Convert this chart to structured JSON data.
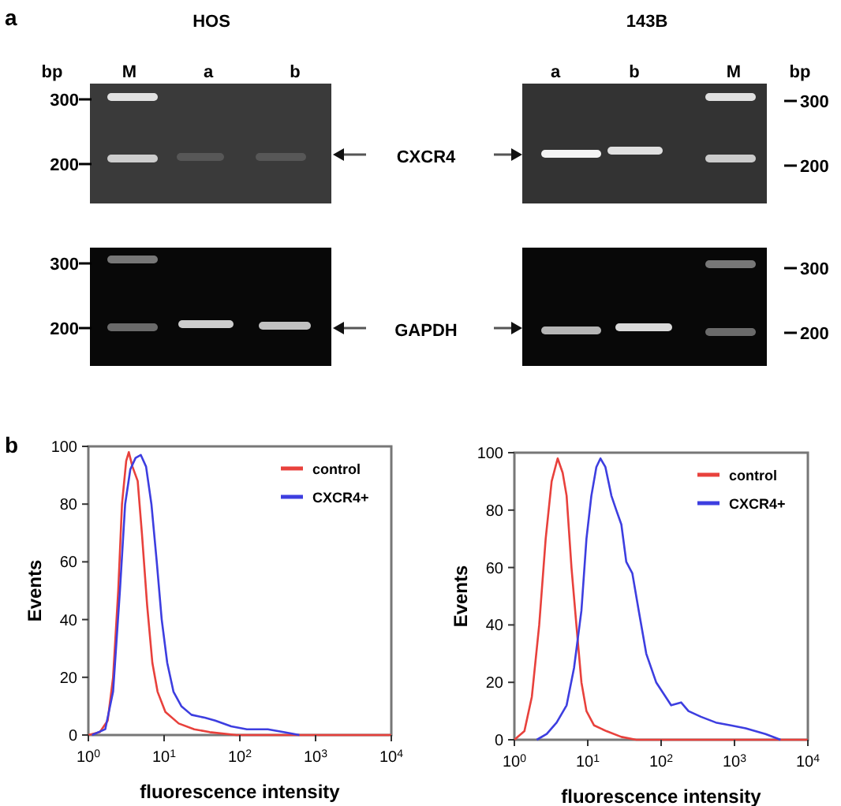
{
  "chart_data": [
    {
      "type": "other",
      "annotations": [
        "a",
        "HOS",
        "143B",
        "bp",
        "M",
        "a",
        "b",
        "a",
        "b",
        "M",
        "bp",
        "300",
        "200",
        "300",
        "200",
        "300",
        "200",
        "300",
        "200",
        "CXCR4",
        "GAPDH",
        "b"
      ]
    },
    {
      "type": "line",
      "xlabel": "fluorescence intensity",
      "ylabel": "Events",
      "log": "x",
      "legend": "top right",
      "xlim": [
        1,
        10000
      ],
      "xticks": [
        {
          "value": 1,
          "label": "10$^{0}$"
        },
        {
          "value": 10,
          "label": "10$^{1}$"
        },
        {
          "value": 100,
          "label": "10$^{2}$"
        },
        {
          "value": 1000,
          "label": "10$^{3}$"
        },
        {
          "value": 10000,
          "label": "10$^{4}$"
        }
      ],
      "ylim": [
        0,
        100
      ],
      "yticks": [
        0,
        20,
        40,
        60,
        80,
        100
      ],
      "series": [
        {
          "name": "control",
          "color": "#e8413c",
          "x": [
            1,
            1.42,
            1.8,
            2.12,
            2.48,
            2.78,
            3.16,
            3.42,
            3.82,
            4.48,
            5.09,
            5.97,
            7.0,
            8.2,
            10.4,
            15.6,
            25,
            40,
            90,
            10000
          ],
          "values": [
            0,
            1,
            5,
            20,
            50,
            80,
            95,
            98,
            93,
            88,
            70,
            45,
            25,
            15,
            8,
            4,
            2,
            1,
            0,
            0
          ]
        },
        {
          "name": "CXCR4+",
          "color": "#3d3ee0",
          "x": [
            1.12,
            1.67,
            2.12,
            2.61,
            3.06,
            3.58,
            4.2,
            4.93,
            5.78,
            6.8,
            8.0,
            9.3,
            11,
            13.3,
            16.9,
            23,
            34.5,
            47.5,
            77,
            124,
            234,
            378,
            611
          ],
          "values": [
            0,
            2,
            15,
            50,
            80,
            92,
            96,
            97,
            93,
            80,
            60,
            40,
            25,
            15,
            10,
            7,
            6,
            5,
            3,
            2,
            2,
            1,
            0
          ]
        }
      ]
    },
    {
      "type": "line",
      "xlabel": "fluorescence intensity",
      "ylabel": "Events",
      "log": "x",
      "legend": "top right",
      "xlim": [
        1,
        10000
      ],
      "xticks": [
        {
          "value": 1,
          "label": "10$^{0}$"
        },
        {
          "value": 10,
          "label": "10$^{1}$"
        },
        {
          "value": 100,
          "label": "10$^{2}$"
        },
        {
          "value": 1000,
          "label": "10$^{3}$"
        },
        {
          "value": 10000,
          "label": "10$^{4}$"
        }
      ],
      "ylim": [
        0,
        100
      ],
      "yticks": [
        0,
        20,
        40,
        60,
        80,
        100
      ],
      "series": [
        {
          "name": "control",
          "color": "#e8413c",
          "x": [
            1,
            1.37,
            1.73,
            2.18,
            2.67,
            3.22,
            3.89,
            4.55,
            5.15,
            6.0,
            7.0,
            8.2,
            9.6,
            12.2,
            18,
            28.7,
            45.8,
            10000
          ],
          "values": [
            0,
            3,
            15,
            40,
            70,
            90,
            98,
            93,
            85,
            60,
            40,
            20,
            10,
            5,
            3,
            1,
            0,
            0
          ]
        },
        {
          "name": "CXCR4+",
          "color": "#3d3ee0",
          "x": [
            2.02,
            2.76,
            3.77,
            5.15,
            6.5,
            8.2,
            9.6,
            11.2,
            13.1,
            14.9,
            17.4,
            21,
            24.5,
            28.7,
            33.5,
            40.5,
            49.5,
            62.7,
            85.6,
            137,
            187,
            236,
            349,
            557,
            889,
            1420,
            2650,
            4240
          ],
          "values": [
            0,
            2,
            6,
            12,
            25,
            45,
            70,
            85,
            95,
            98,
            95,
            85,
            80,
            75,
            62,
            58,
            45,
            30,
            20,
            12,
            13,
            10,
            8,
            6,
            5,
            4,
            2,
            0
          ]
        }
      ]
    }
  ]
}
